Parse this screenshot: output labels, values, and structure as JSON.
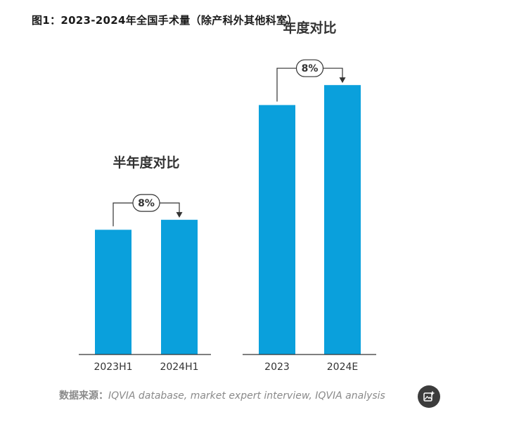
{
  "figure_title": "图1：2023-2024年全国手术量（除产科外其他科室）",
  "source": {
    "label": "数据来源：",
    "text": "IQVIA database, market expert interview, IQVIA analysis"
  },
  "colors": {
    "bar": "#0aa0dc",
    "baseline": "#333333",
    "text": "#333333",
    "button": "#3c3c3c"
  },
  "fab_icon": "image-add-icon",
  "chart_data": [
    {
      "type": "bar",
      "title": "半年度对比",
      "categories": [
        "2023H1",
        "2024H1"
      ],
      "values": [
        100,
        108
      ],
      "growth_label": "8%",
      "ylim": [
        0,
        242
      ]
    },
    {
      "type": "bar",
      "title": "年度对比",
      "categories": [
        "2023",
        "2024E"
      ],
      "values": [
        200,
        216
      ],
      "growth_label": "8%",
      "ylim": [
        0,
        242
      ]
    }
  ]
}
